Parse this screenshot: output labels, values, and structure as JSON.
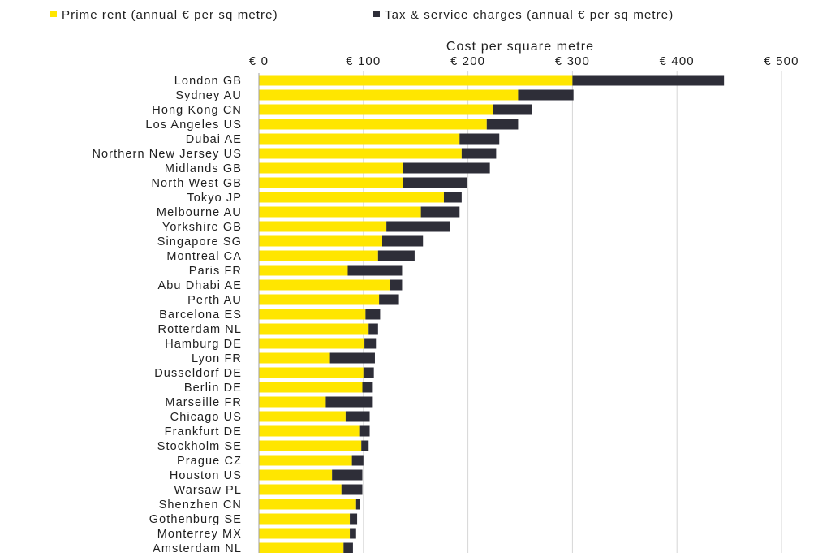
{
  "colors": {
    "prime_rent": "#FFE600",
    "tax_service": "#2E2E38"
  },
  "chart_data": {
    "type": "bar",
    "orientation": "horizontal",
    "stacked": true,
    "title": "",
    "xlabel": "Cost per square metre",
    "x_axis_position": "top",
    "xlim": [
      0,
      500
    ],
    "x_ticks": [
      0,
      100,
      200,
      300,
      400,
      500
    ],
    "x_tick_labels": [
      "€ 0",
      "€ 100",
      "€ 200",
      "€ 300",
      "€ 400",
      "€ 500"
    ],
    "grid": true,
    "legend_position": "top",
    "categories": [
      "London GB",
      "Sydney AU",
      "Hong Kong CN",
      "Los Angeles US",
      "Dubai AE",
      "Northern New Jersey US",
      "Midlands GB",
      "North West GB",
      "Tokyo JP",
      "Melbourne AU",
      "Yorkshire GB",
      "Singapore SG",
      "Montreal CA",
      "Paris FR",
      "Abu Dhabi AE",
      "Perth AU",
      "Barcelona ES",
      "Rotterdam NL",
      "Hamburg DE",
      "Lyon FR",
      "Dusseldorf DE",
      "Berlin DE",
      "Marseille FR",
      "Chicago US",
      "Frankfurt DE",
      "Stockholm SE",
      "Prague CZ",
      "Houston US",
      "Warsaw PL",
      "Shenzhen CN",
      "Gothenburg SE",
      "Monterrey MX",
      "Amsterdam NL"
    ],
    "series": [
      {
        "name": "Prime rent (annual € per sq metre)",
        "color_key": "prime_rent",
        "values": [
          300,
          248,
          224,
          218,
          192,
          194,
          138,
          138,
          177,
          155,
          122,
          118,
          114,
          85,
          125,
          115,
          102,
          105,
          101,
          68,
          100,
          99,
          64,
          83,
          96,
          98,
          89,
          70,
          79,
          93,
          87,
          87,
          81
        ]
      },
      {
        "name": "Tax & service charges (annual € per sq metre)",
        "color_key": "tax_service",
        "values": [
          145,
          53,
          37,
          30,
          38,
          33,
          83,
          61,
          17,
          37,
          61,
          39,
          35,
          52,
          12,
          19,
          14,
          9,
          11,
          43,
          10,
          10,
          45,
          23,
          10,
          7,
          11,
          29,
          20,
          4,
          7,
          6,
          9
        ]
      }
    ]
  }
}
